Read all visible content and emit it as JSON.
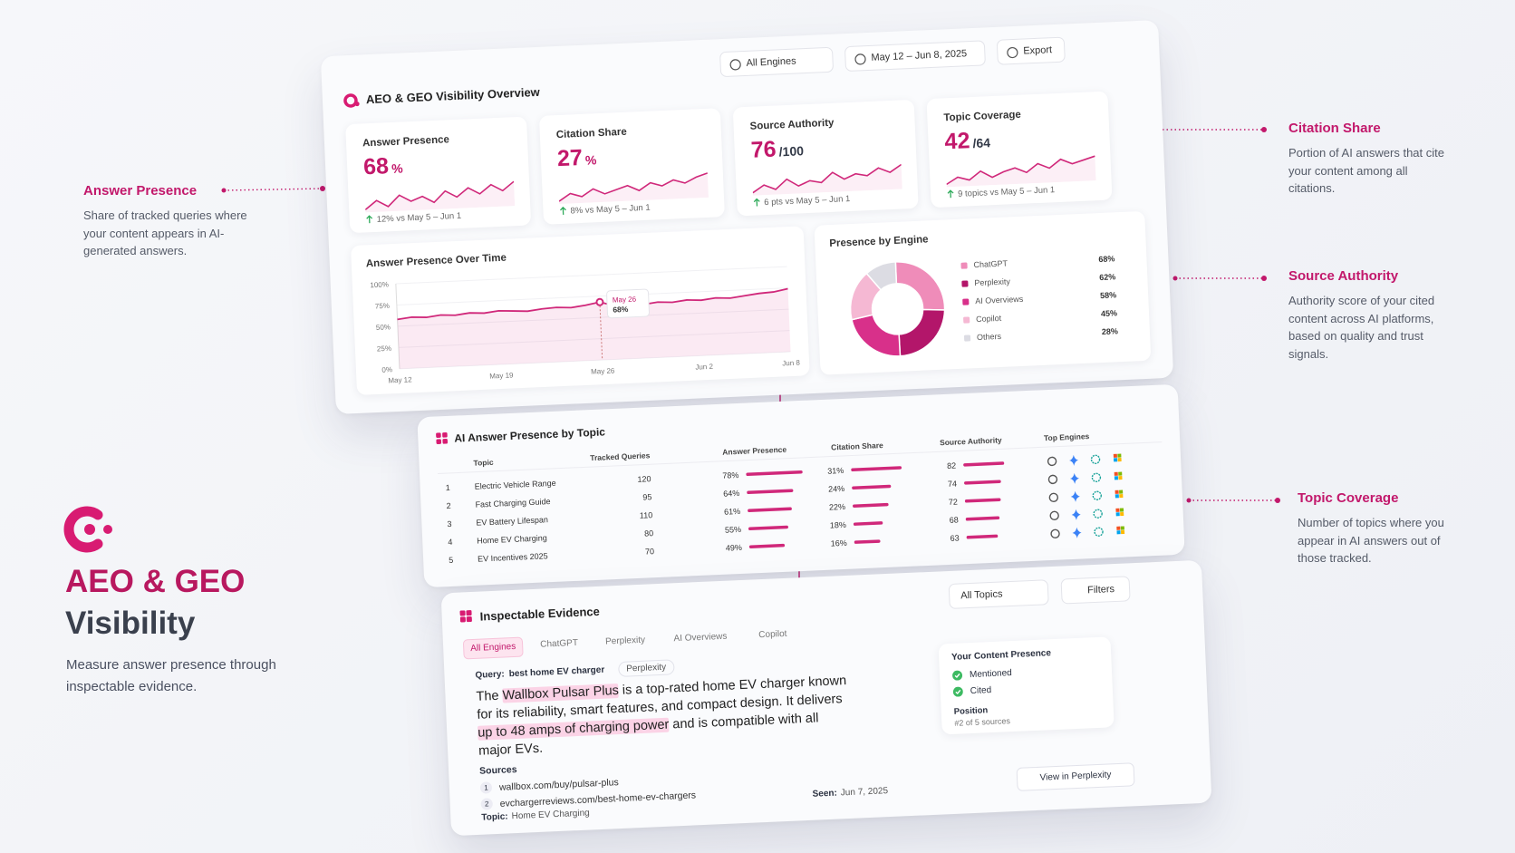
{
  "brand": {
    "title_line1": "AEO & GEO",
    "title_line2": "Visibility",
    "tagline": "Measure answer presence through inspectable evidence."
  },
  "callouts": [
    {
      "title": "Answer Presence",
      "text": "Share of tracked queries where your content appears in AI-generated answers."
    },
    {
      "title": "Citation Share",
      "text": "Portion of AI answers that cite your content among all citations."
    },
    {
      "title": "Source Authority",
      "text": "Authority score of your cited content across AI platforms, based on quality and trust signals."
    },
    {
      "title": "Topic Coverage",
      "text": "Number of topics where you appear in AI answers out of those tracked."
    }
  ],
  "overview": {
    "title": "AEO & GEO Visibility Overview",
    "engine_filter": "All Engines",
    "date_range": "May 12 – Jun 8, 2025",
    "export": "Export",
    "kpis": [
      {
        "label": "Answer Presence",
        "value": "68",
        "unit": "%",
        "unit_color": "#c2186b",
        "change": "12% vs May 5 – Jun 1",
        "trend": [
          40,
          44,
          41,
          46,
          43,
          45,
          42,
          47,
          44,
          48,
          45,
          49,
          46,
          50
        ]
      },
      {
        "label": "Citation Share",
        "value": "27",
        "unit": "%",
        "unit_color": "#c2186b",
        "change": "8% vs May 5 – Jun 1",
        "trend": [
          38,
          42,
          40,
          44,
          41,
          43,
          45,
          42,
          46,
          44,
          47,
          45,
          48,
          50
        ]
      },
      {
        "label": "Source Authority",
        "value": "76",
        "unit": "/100",
        "unit_color": "#333a48",
        "change": "6 pts vs May 5 – Jun 1",
        "trend": [
          40,
          43,
          41,
          45,
          42,
          44,
          43,
          47,
          44,
          46,
          45,
          48,
          46,
          49
        ]
      },
      {
        "label": "Topic Coverage",
        "value": "42",
        "unit": "/64",
        "unit_color": "#333a48",
        "change": "9 topics vs May 5 – Jun 1",
        "trend": [
          38,
          42,
          40,
          45,
          41,
          44,
          46,
          43,
          48,
          45,
          50,
          47,
          49,
          51
        ]
      }
    ]
  },
  "chart_data": [
    {
      "type": "line",
      "title": "Answer Presence Over Time",
      "color": "#d0287a",
      "categories": [
        "May 12",
        null,
        null,
        null,
        null,
        null,
        null,
        "May 19",
        null,
        null,
        null,
        null,
        null,
        null,
        "May 26",
        null,
        null,
        null,
        null,
        null,
        null,
        "Jun 2",
        null,
        null,
        null,
        null,
        null,
        "Jun 8"
      ],
      "values": [
        58,
        60,
        59,
        61,
        60,
        62,
        61,
        63,
        62,
        61,
        63,
        64,
        63,
        65,
        68,
        63,
        64,
        63,
        65,
        64,
        66,
        65,
        67,
        66,
        68,
        70,
        71,
        74
      ],
      "ylim": [
        0,
        100
      ],
      "yticks": [
        {
          "value": 0,
          "label": "0%"
        },
        {
          "value": 25,
          "label": "25%"
        },
        {
          "value": 50,
          "label": "50%"
        },
        {
          "value": 75,
          "label": "75%"
        },
        {
          "value": 100,
          "label": "100%"
        }
      ],
      "grid": true,
      "tooltip": {
        "label": "May 26",
        "value_label": "68%"
      }
    },
    {
      "type": "pie",
      "title": "Presence by Engine",
      "categories": [
        "ChatGPT",
        "Perplexity",
        "AI Overviews",
        "Copilot",
        "Others"
      ],
      "values": [
        68,
        62,
        58,
        45,
        28
      ],
      "value_labels": [
        "68%",
        "62%",
        "58%",
        "45%",
        "28%"
      ],
      "colors": [
        "#ef8cb9",
        "#b3166a",
        "#d8308a",
        "#f5b8d3",
        "#dcdce3"
      ]
    }
  ],
  "topic_table": {
    "title": "AI Answer Presence by Topic",
    "columns": [
      "Topic",
      "Tracked Queries",
      "Answer Presence",
      "Citation Share",
      "Source Authority",
      "Top Engines"
    ],
    "rows": [
      {
        "rank": "1",
        "topic": "Electric Vehicle Range",
        "tracked": "120",
        "answer_presence": 78,
        "answer_presence_label": "78%",
        "citation_share": 31,
        "citation_share_label": "31%",
        "authority": 82
      },
      {
        "rank": "2",
        "topic": "Fast Charging Guide",
        "tracked": "95",
        "answer_presence": 64,
        "answer_presence_label": "64%",
        "citation_share": 24,
        "citation_share_label": "24%",
        "authority": 74
      },
      {
        "rank": "3",
        "topic": "EV Battery Lifespan",
        "tracked": "110",
        "answer_presence": 61,
        "answer_presence_label": "61%",
        "citation_share": 22,
        "citation_share_label": "22%",
        "authority": 72
      },
      {
        "rank": "4",
        "topic": "Home EV Charging",
        "tracked": "80",
        "answer_presence": 55,
        "answer_presence_label": "55%",
        "citation_share": 18,
        "citation_share_label": "18%",
        "authority": 68
      },
      {
        "rank": "5",
        "topic": "EV Incentives 2025",
        "tracked": "70",
        "answer_presence": 49,
        "answer_presence_label": "49%",
        "citation_share": 16,
        "citation_share_label": "16%",
        "authority": 63
      }
    ]
  },
  "evidence": {
    "title": "Inspectable Evidence",
    "topic_filter": "All Topics",
    "filters": "Filters",
    "tabs": [
      "All Engines",
      "ChatGPT",
      "Perplexity",
      "AI Overviews",
      "Copilot"
    ],
    "query_label": "Query:",
    "query": "best home EV charger",
    "engine": "Perplexity",
    "answer": [
      {
        "text": "The "
      },
      {
        "text": "Wallbox Pulsar Plus",
        "highlight": true
      },
      {
        "text": " is a top-rated home EV charger known for its reliability, smart features, and compact design. It delivers "
      },
      {
        "text": "up to 48 amps of charging power",
        "highlight": true
      },
      {
        "text": " and is compatible with all major EVs."
      }
    ],
    "sources_label": "Sources",
    "sources": [
      {
        "n": "1",
        "url": "wallbox.com/buy/pulsar-plus"
      },
      {
        "n": "2",
        "url": "evchargerreviews.com/best-home-ev-chargers"
      }
    ],
    "presence": {
      "title": "Your Content Presence",
      "items": [
        "Mentioned",
        "Cited"
      ],
      "position_label": "Position",
      "position": "#2 of 5 sources"
    },
    "topic_label": "Topic:",
    "topic": "Home EV Charging",
    "seen_label": "Seen:",
    "seen": "Jun 7, 2025",
    "view_button": "View in Perplexity"
  }
}
